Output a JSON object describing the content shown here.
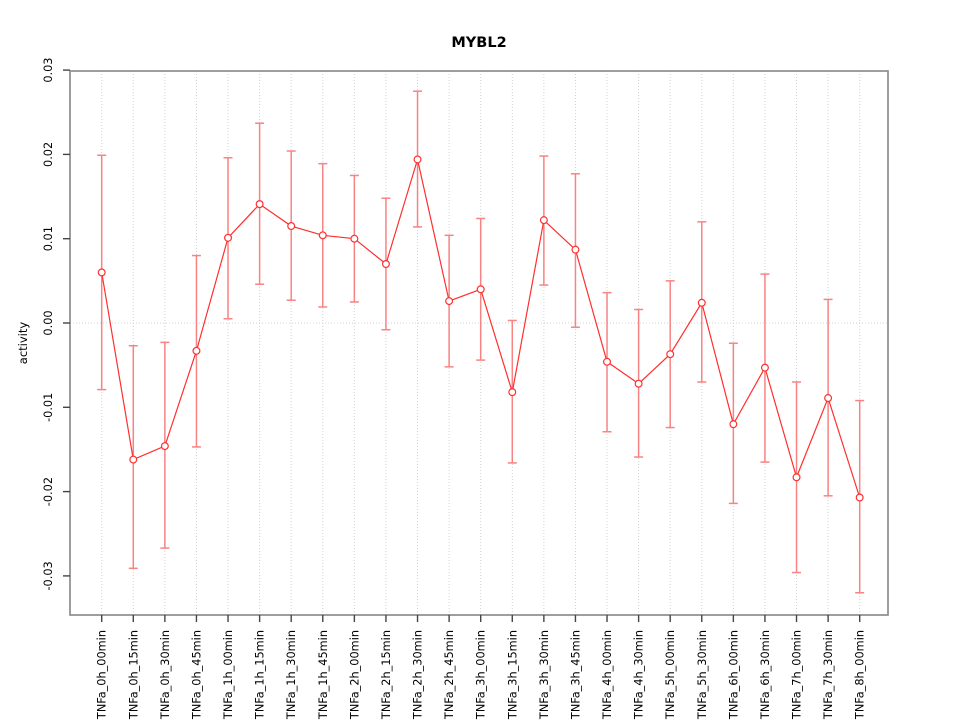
{
  "chart_data": {
    "type": "line",
    "title": "MYBL2",
    "xlabel": "",
    "ylabel": "activity",
    "ylim": [
      -0.03,
      0.03
    ],
    "ytick_values": [
      0.03,
      0.02,
      0.01,
      0.0,
      -0.01,
      -0.02,
      -0.03
    ],
    "ytick_labels": [
      "0.03",
      "0.02",
      "0.01",
      "0.00",
      "-0.01",
      "-0.02",
      "-0.03"
    ],
    "grid": "dotted vertical gridline at every category; dotted horizontal line at y=0",
    "legend": "none",
    "point_marker": "open-circle",
    "error_bars": true,
    "colors": {
      "line": "#ff2f2f",
      "marker": "#ff2f2f",
      "errorbar": "#f88383",
      "grid": "#d2d2d2",
      "box": "#8e8e8e",
      "tick": "#444444",
      "background": "#ffffff"
    },
    "categories": [
      "TNFa_0h_00min",
      "TNFa_0h_15min",
      "TNFa_0h_30min",
      "TNFa_0h_45min",
      "TNFa_1h_00min",
      "TNFa_1h_15min",
      "TNFa_1h_30min",
      "TNFa_1h_45min",
      "TNFa_2h_00min",
      "TNFa_2h_15min",
      "TNFa_2h_30min",
      "TNFa_2h_45min",
      "TNFa_3h_00min",
      "TNFa_3h_15min",
      "TNFa_3h_30min",
      "TNFa_3h_45min",
      "TNFa_4h_00min",
      "TNFa_4h_30min",
      "TNFa_5h_00min",
      "TNFa_5h_30min",
      "TNFa_6h_00min",
      "TNFa_6h_30min",
      "TNFa_7h_00min",
      "TNFa_7h_30min",
      "TNFa_8h_00min"
    ],
    "series": [
      {
        "name": "activity",
        "values": [
          0.006,
          -0.0162,
          -0.0146,
          -0.0033,
          0.0101,
          0.0141,
          0.0115,
          0.0104,
          0.01,
          0.007,
          0.0194,
          0.0026,
          0.004,
          -0.0082,
          0.0122,
          0.0087,
          -0.0046,
          -0.0072,
          -0.0037,
          0.0024,
          -0.012,
          -0.0053,
          -0.0183,
          -0.0089,
          -0.0207
        ],
        "upper": [
          0.0199,
          -0.0027,
          -0.0023,
          0.008,
          0.0196,
          0.0237,
          0.0204,
          0.0189,
          0.0175,
          0.0148,
          0.0275,
          0.0104,
          0.0124,
          0.0003,
          0.0198,
          0.0177,
          0.0036,
          0.0016,
          0.005,
          0.012,
          -0.0024,
          0.0058,
          -0.007,
          0.0028,
          -0.0092
        ],
        "lower": [
          -0.0079,
          -0.0291,
          -0.0267,
          -0.0147,
          0.0005,
          0.0046,
          0.0027,
          0.0019,
          0.0025,
          -0.0008,
          0.0114,
          -0.0052,
          -0.0044,
          -0.0166,
          0.0045,
          -0.0005,
          -0.0129,
          -0.0159,
          -0.0124,
          -0.007,
          -0.0214,
          -0.0165,
          -0.0296,
          -0.0205,
          -0.032
        ]
      }
    ]
  }
}
